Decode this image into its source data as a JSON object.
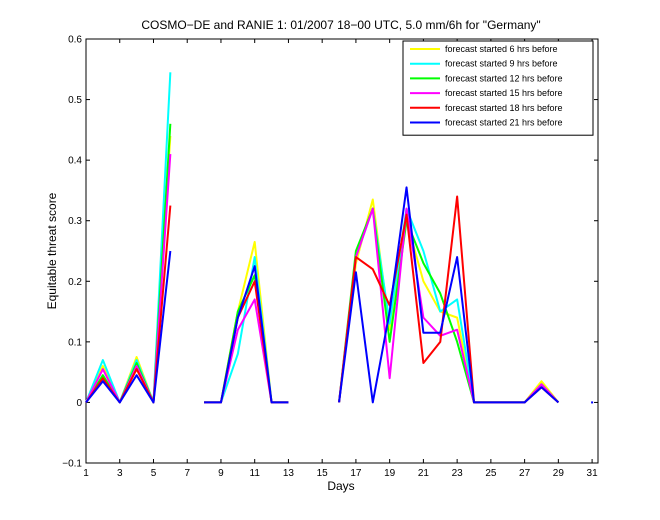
{
  "chart_data": {
    "type": "line",
    "title": "COSMO−DE and RANIE 1: 01/2007 18−00 UTC, 5.0 mm/6h for \"Germany\"",
    "xlabel": "Days",
    "ylabel": "Equitable threat score",
    "xlim": [
      1,
      31
    ],
    "ylim": [
      -0.1,
      0.6
    ],
    "xticks": [
      1,
      3,
      5,
      7,
      9,
      11,
      13,
      15,
      17,
      19,
      21,
      23,
      25,
      27,
      29,
      31
    ],
    "xtick_labels": [
      "1",
      "3",
      "5",
      "7",
      "9",
      "11",
      "13",
      "15",
      "17",
      "19",
      "21",
      "23",
      "25",
      "27",
      "29",
      "31"
    ],
    "yticks": [
      -0.1,
      0,
      0.1,
      0.2,
      0.3,
      0.4,
      0.5,
      0.6
    ],
    "ytick_labels": [
      "−0.1",
      "0",
      "0.1",
      "0.2",
      "0.3",
      "0.4",
      "0.5",
      "0.6"
    ],
    "x": [
      1,
      2,
      3,
      4,
      5,
      6,
      7,
      8,
      9,
      10,
      11,
      12,
      13,
      14,
      15,
      16,
      17,
      18,
      19,
      20,
      21,
      22,
      23,
      24,
      25,
      26,
      27,
      28,
      29,
      30,
      31
    ],
    "legend_position": "top-right",
    "grid": false,
    "series": [
      {
        "name": "forecast started 6 hrs before",
        "color": "#ffff00",
        "values": [
          0,
          0.06,
          0,
          0.075,
          0,
          0.44,
          null,
          0,
          0,
          0.15,
          0.265,
          0,
          0,
          null,
          null,
          0,
          0.23,
          0.335,
          0.12,
          0.3,
          0.2,
          0.15,
          0.14,
          0,
          0,
          0,
          0,
          0.035,
          0,
          null,
          null
        ]
      },
      {
        "name": "forecast started 9 hrs before",
        "color": "#00ffff",
        "values": [
          0,
          0.07,
          0,
          0.07,
          0,
          0.545,
          null,
          0,
          0,
          0.08,
          0.24,
          0,
          0,
          null,
          null,
          0,
          0.24,
          0.32,
          0.13,
          0.32,
          0.25,
          0.15,
          0.17,
          0,
          0,
          0,
          0,
          0.03,
          0,
          null,
          null
        ]
      },
      {
        "name": "forecast started 12 hrs before",
        "color": "#00ff00",
        "values": [
          0,
          0.045,
          0,
          0.065,
          0,
          0.46,
          null,
          0,
          0,
          0.15,
          0.21,
          0,
          0,
          null,
          null,
          0,
          0.25,
          0.32,
          0.1,
          0.3,
          0.23,
          0.18,
          0.1,
          0,
          0,
          0,
          0,
          0.03,
          0,
          null,
          null
        ]
      },
      {
        "name": "forecast started 15 hrs before",
        "color": "#ff00ff",
        "values": [
          0,
          0.055,
          0,
          0.06,
          0,
          0.41,
          null,
          0,
          0,
          0.12,
          0.17,
          0,
          0,
          null,
          null,
          0,
          0.24,
          0.32,
          0.04,
          0.32,
          0.14,
          0.11,
          0.12,
          0,
          0,
          0,
          0,
          0.03,
          0,
          null,
          null
        ]
      },
      {
        "name": "forecast started 18 hrs before",
        "color": "#ff0000",
        "values": [
          0,
          0.04,
          0,
          0.055,
          0,
          0.325,
          null,
          0,
          0,
          0.14,
          0.2,
          0,
          0,
          null,
          null,
          0,
          0.24,
          0.22,
          0.16,
          0.31,
          0.065,
          0.1,
          0.34,
          0,
          0,
          0,
          0,
          0.025,
          0,
          null,
          null
        ]
      },
      {
        "name": "forecast started 21 hrs before",
        "color": "#0000ff",
        "values": [
          0,
          0.035,
          0,
          0.045,
          0,
          0.25,
          null,
          0,
          0,
          0.14,
          0.225,
          0,
          0,
          null,
          null,
          0,
          0.215,
          0,
          0.15,
          0.355,
          0.115,
          0.115,
          0.24,
          0,
          0,
          0,
          0,
          0.025,
          0,
          null,
          0
        ]
      }
    ]
  }
}
